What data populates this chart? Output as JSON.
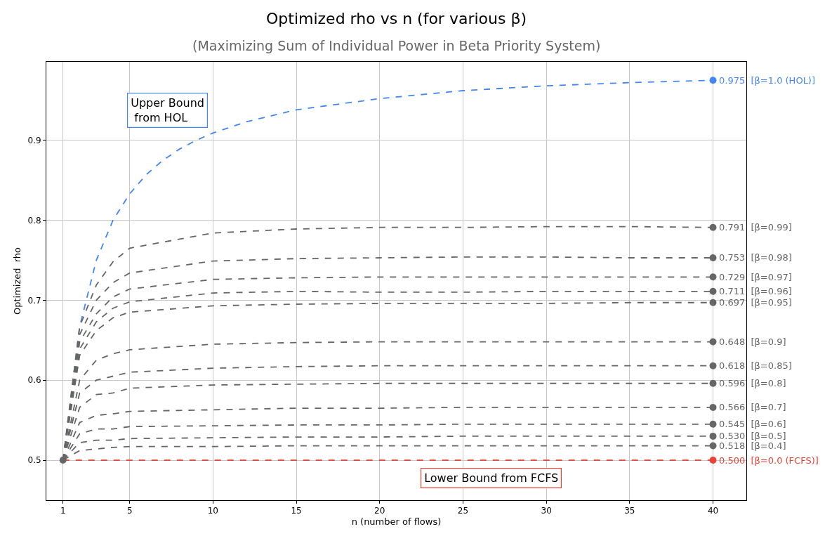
{
  "chart_data": {
    "type": "line",
    "title": "Optimized rho vs n (for various β)",
    "subtitle": "(Maximizing Sum of Individual Power in Beta Priority System)",
    "xlabel": "n (number of flows)",
    "ylabel": "Optimized  rho",
    "xlim": [
      0,
      42
    ],
    "ylim": [
      0.45,
      0.998
    ],
    "xticks": [
      1,
      5,
      10,
      15,
      20,
      25,
      30,
      35,
      40
    ],
    "yticks": [
      0.5,
      0.6,
      0.7,
      0.8,
      0.9
    ],
    "grid": true,
    "legend": false,
    "marker": "none",
    "line_style": "dashed",
    "annotations": [
      "Upper Bound\n from HOL",
      "Lower Bound from FCFS"
    ],
    "series": [
      {
        "name": "[β=1.0 (HOL)]",
        "color": "#4285f4",
        "x": [
          1,
          2,
          3,
          4,
          5,
          6,
          7,
          8,
          9,
          10,
          12,
          15,
          20,
          25,
          30,
          35,
          40
        ],
        "values": [
          0.5,
          0.667,
          0.75,
          0.8,
          0.833,
          0.857,
          0.875,
          0.889,
          0.9,
          0.909,
          0.923,
          0.938,
          0.952,
          0.962,
          0.968,
          0.972,
          0.975
        ],
        "value_labels": [
          null,
          null,
          null,
          null,
          null,
          null,
          null,
          null,
          null,
          null,
          null,
          null,
          null,
          null,
          null,
          null,
          "0.975"
        ]
      },
      {
        "name": "[β=0.0 (FCFS)]",
        "color": "#ea4335",
        "x": [
          1,
          40
        ],
        "values": [
          0.5,
          0.5
        ],
        "value_labels": [
          null,
          "0.500"
        ]
      },
      {
        "name": "[β=0.99]",
        "color": "#666666",
        "x": [
          1,
          2,
          3,
          4,
          5,
          10,
          15,
          20,
          25,
          30,
          35,
          40
        ],
        "values": [
          0.5,
          0.667,
          0.719,
          0.748,
          0.765,
          0.784,
          0.789,
          0.791,
          0.791,
          0.792,
          0.792,
          0.791
        ],
        "value_labels": [
          null,
          null,
          null,
          null,
          null,
          null,
          null,
          null,
          null,
          null,
          null,
          "0.791"
        ]
      },
      {
        "name": "[β=0.98]",
        "color": "#666666",
        "x": [
          1,
          2,
          3,
          4,
          5,
          10,
          15,
          20,
          25,
          30,
          35,
          40
        ],
        "values": [
          0.5,
          0.657,
          0.7,
          0.722,
          0.734,
          0.749,
          0.752,
          0.753,
          0.754,
          0.754,
          0.753,
          0.753
        ],
        "value_labels": [
          null,
          null,
          null,
          null,
          null,
          null,
          null,
          null,
          null,
          null,
          null,
          "0.753"
        ]
      },
      {
        "name": "[β=0.97]",
        "color": "#666666",
        "x": [
          1,
          2,
          3,
          4,
          5,
          10,
          15,
          20,
          25,
          30,
          35,
          40
        ],
        "values": [
          0.5,
          0.648,
          0.683,
          0.704,
          0.714,
          0.726,
          0.728,
          0.729,
          0.729,
          0.729,
          0.729,
          0.729
        ],
        "value_labels": [
          null,
          null,
          null,
          null,
          null,
          null,
          null,
          null,
          null,
          null,
          null,
          "0.729"
        ]
      },
      {
        "name": "[β=0.96]",
        "color": "#666666",
        "x": [
          1,
          2,
          3,
          4,
          5,
          10,
          15,
          20,
          25,
          30,
          35,
          40
        ],
        "values": [
          0.5,
          0.639,
          0.673,
          0.69,
          0.698,
          0.709,
          0.711,
          0.71,
          0.71,
          0.711,
          0.711,
          0.711
        ],
        "value_labels": [
          null,
          null,
          null,
          null,
          null,
          null,
          null,
          null,
          null,
          null,
          null,
          "0.711"
        ]
      },
      {
        "name": "[β=0.95]",
        "color": "#666666",
        "x": [
          1,
          2,
          3,
          4,
          5,
          10,
          15,
          20,
          25,
          30,
          35,
          40
        ],
        "values": [
          0.5,
          0.631,
          0.662,
          0.678,
          0.685,
          0.693,
          0.695,
          0.696,
          0.696,
          0.696,
          0.697,
          0.697
        ],
        "value_labels": [
          null,
          null,
          null,
          null,
          null,
          null,
          null,
          null,
          null,
          null,
          null,
          "0.697"
        ]
      },
      {
        "name": "[β=0.9]",
        "color": "#666666",
        "x": [
          1,
          2,
          3,
          4,
          5,
          10,
          15,
          20,
          25,
          30,
          35,
          40
        ],
        "values": [
          0.5,
          0.6,
          0.625,
          0.633,
          0.638,
          0.645,
          0.647,
          0.648,
          0.648,
          0.648,
          0.648,
          0.648
        ],
        "value_labels": [
          null,
          null,
          null,
          null,
          null,
          null,
          null,
          null,
          null,
          null,
          null,
          "0.648"
        ]
      },
      {
        "name": "[β=0.85]",
        "color": "#666666",
        "x": [
          1,
          2,
          3,
          4,
          5,
          10,
          15,
          20,
          25,
          30,
          35,
          40
        ],
        "values": [
          0.5,
          0.584,
          0.6,
          0.605,
          0.61,
          0.615,
          0.617,
          0.618,
          0.618,
          0.618,
          0.618,
          0.618
        ],
        "value_labels": [
          null,
          null,
          null,
          null,
          null,
          null,
          null,
          null,
          null,
          null,
          null,
          "0.618"
        ]
      },
      {
        "name": "[β=0.8]",
        "color": "#666666",
        "x": [
          1,
          2,
          3,
          4,
          5,
          10,
          15,
          20,
          25,
          30,
          35,
          40
        ],
        "values": [
          0.5,
          0.566,
          0.582,
          0.584,
          0.59,
          0.594,
          0.595,
          0.596,
          0.596,
          0.596,
          0.596,
          0.596
        ],
        "value_labels": [
          null,
          null,
          null,
          null,
          null,
          null,
          null,
          null,
          null,
          null,
          null,
          "0.596"
        ]
      },
      {
        "name": "[β=0.7]",
        "color": "#666666",
        "x": [
          1,
          2,
          3,
          4,
          5,
          10,
          15,
          20,
          25,
          30,
          35,
          40
        ],
        "values": [
          0.5,
          0.547,
          0.556,
          0.558,
          0.561,
          0.563,
          0.565,
          0.565,
          0.566,
          0.566,
          0.566,
          0.566
        ],
        "value_labels": [
          null,
          null,
          null,
          null,
          null,
          null,
          null,
          null,
          null,
          null,
          null,
          "0.566"
        ]
      },
      {
        "name": "[β=0.6]",
        "color": "#666666",
        "x": [
          1,
          2,
          3,
          4,
          5,
          10,
          15,
          20,
          25,
          30,
          35,
          40
        ],
        "values": [
          0.5,
          0.533,
          0.539,
          0.539,
          0.542,
          0.543,
          0.544,
          0.544,
          0.545,
          0.545,
          0.545,
          0.545
        ],
        "value_labels": [
          null,
          null,
          null,
          null,
          null,
          null,
          null,
          null,
          null,
          null,
          null,
          "0.545"
        ]
      },
      {
        "name": "[β=0.5]",
        "color": "#666666",
        "x": [
          1,
          2,
          3,
          4,
          5,
          10,
          15,
          20,
          25,
          30,
          35,
          40
        ],
        "values": [
          0.5,
          0.522,
          0.525,
          0.525,
          0.527,
          0.528,
          0.529,
          0.529,
          0.53,
          0.53,
          0.53,
          0.53
        ],
        "value_labels": [
          null,
          null,
          null,
          null,
          null,
          null,
          null,
          null,
          null,
          null,
          null,
          "0.530"
        ]
      },
      {
        "name": "[β=0.4]",
        "color": "#666666",
        "x": [
          1,
          2,
          3,
          4,
          5,
          10,
          15,
          20,
          25,
          30,
          35,
          40
        ],
        "values": [
          0.5,
          0.512,
          0.514,
          0.516,
          0.517,
          0.517,
          0.518,
          0.518,
          0.518,
          0.518,
          0.518,
          0.518
        ],
        "value_labels": [
          null,
          null,
          null,
          null,
          null,
          null,
          null,
          null,
          null,
          null,
          null,
          "0.518"
        ]
      },
      {
        "type": "scatter",
        "marker": "circle",
        "x": [
          40,
          40,
          40,
          40,
          40,
          40,
          40,
          40,
          40,
          40,
          40,
          40,
          40,
          40,
          1
        ],
        "values": [
          0.975,
          0.5,
          0.791,
          0.753,
          0.729,
          0.711,
          0.697,
          0.648,
          0.618,
          0.596,
          0.566,
          0.545,
          0.53,
          0.518,
          0.5
        ],
        "colors": [
          "#4285f4",
          "#ea4335",
          "#666666",
          "#666666",
          "#666666",
          "#666666",
          "#666666",
          "#666666",
          "#666666",
          "#666666",
          "#666666",
          "#666666",
          "#666666",
          "#666666",
          "#666666"
        ]
      }
    ]
  }
}
